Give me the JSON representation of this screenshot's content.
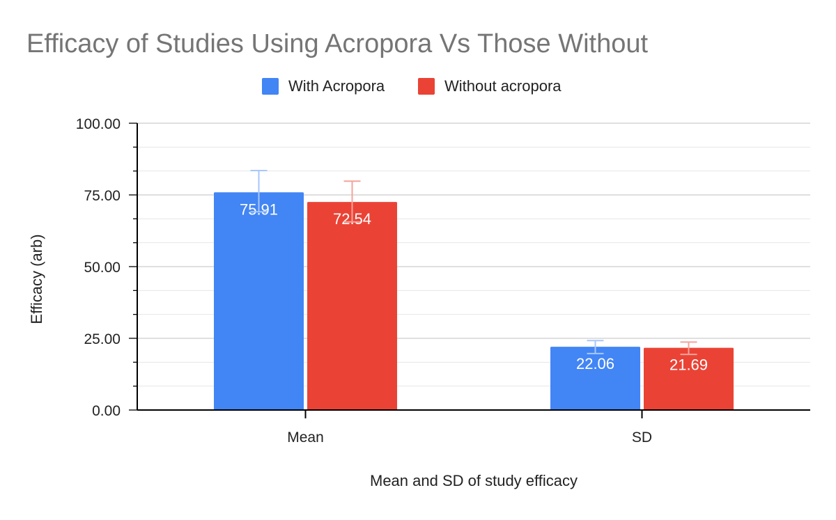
{
  "chart_data": {
    "type": "bar",
    "title": "Efficacy of Studies Using Acropora Vs Those Without",
    "xlabel": "Mean and SD of study efficacy",
    "ylabel": "Efficacy (arb)",
    "categories": [
      "Mean",
      "SD"
    ],
    "series": [
      {
        "name": "With Acropora",
        "color": "#4285f4",
        "error_color": "#a8c7fa",
        "values": [
          75.91,
          22.06
        ],
        "labels": [
          "75.91",
          "22.06"
        ],
        "error_bars": [
          [
            69.1,
            83.5
          ],
          [
            19.7,
            24.2
          ]
        ]
      },
      {
        "name": "Without acropora",
        "color": "#ea4335",
        "error_color": "#f4a39b",
        "values": [
          72.54,
          21.69
        ],
        "labels": [
          "72.54",
          "21.69"
        ],
        "error_bars": [
          [
            65.6,
            79.8
          ],
          [
            19.4,
            23.7
          ]
        ]
      }
    ],
    "ylim": [
      0,
      100
    ],
    "yticks": [
      0,
      25,
      50,
      75,
      100
    ],
    "ytick_labels": [
      "0.00",
      "25.00",
      "50.00",
      "75.00",
      "100.00"
    ],
    "minor_gridlines": 2,
    "grid": true,
    "legend_position": "top-center",
    "colors": {
      "title": "#757575",
      "axis": "#000000",
      "grid_major": "#cccccc",
      "grid_minor": "#e6e6e6",
      "label_inside": "#ffffff"
    }
  }
}
